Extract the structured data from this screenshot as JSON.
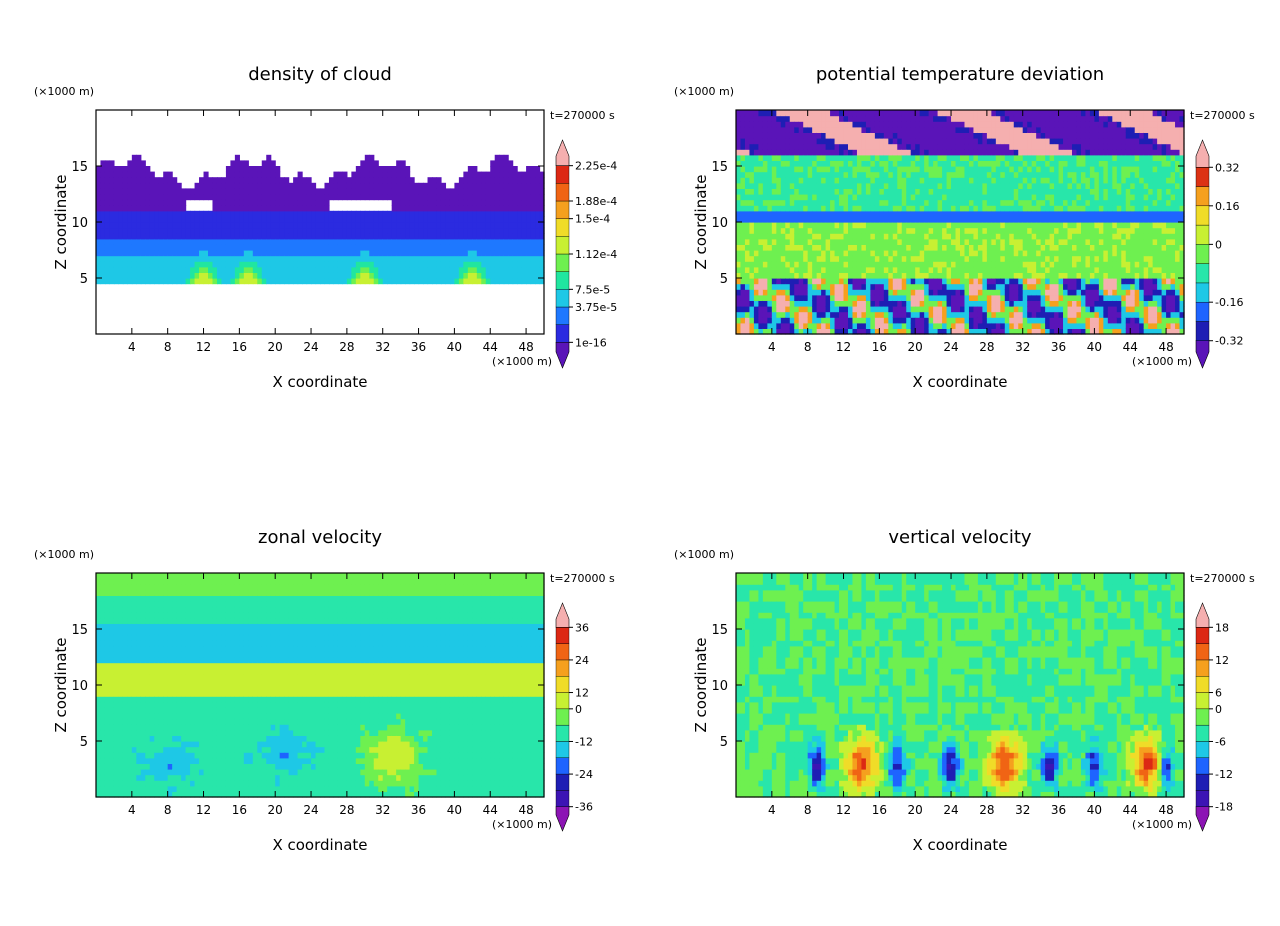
{
  "chart_data": [
    {
      "type": "heatmap",
      "title": "density of cloud",
      "xlabel": "X coordinate",
      "ylabel": "Z coordinate",
      "x_unit": "(×1000 m)",
      "y_unit": "(×1000 m)",
      "time_label": "t=270000 s",
      "xlim": [
        0,
        50
      ],
      "ylim": [
        0,
        20
      ],
      "xticks": [
        "4",
        "8",
        "12",
        "16",
        "20",
        "24",
        "28",
        "32",
        "36",
        "40",
        "44",
        "48"
      ],
      "yticks": [
        "5",
        "10",
        "15"
      ],
      "colorbar": {
        "labels": [
          "1e-16",
          "3.75e-5",
          "7.5e-5",
          "1.12e-4",
          "1.5e-4",
          "1.88e-4",
          "2.25e-4"
        ],
        "colors": [
          "#5a14b8",
          "#2b2be0",
          "#1e78ff",
          "#1ec8e6",
          "#20e6a0",
          "#6ef050",
          "#c8f032",
          "#f0dc28",
          "#f5a01e",
          "#f06414",
          "#dc2814",
          "#f5afaf"
        ]
      }
    },
    {
      "type": "heatmap",
      "title": "potential temperature deviation",
      "xlabel": "X coordinate",
      "ylabel": "Z coordinate",
      "x_unit": "(×1000 m)",
      "y_unit": "(×1000 m)",
      "time_label": "t=270000 s",
      "xlim": [
        0,
        50
      ],
      "ylim": [
        0,
        20
      ],
      "xticks": [
        "4",
        "8",
        "12",
        "16",
        "20",
        "24",
        "28",
        "32",
        "36",
        "40",
        "44",
        "48"
      ],
      "yticks": [
        "5",
        "10",
        "15"
      ],
      "colorbar": {
        "labels": [
          "-0.32",
          "-0.16",
          "0",
          "0.16",
          "0.32"
        ],
        "colors": [
          "#5a14b8",
          "#1e1eb4",
          "#1e64ff",
          "#1ec8e6",
          "#28e6aa",
          "#6ef050",
          "#c8f032",
          "#f0dc28",
          "#f5a01e",
          "#dc3214",
          "#f5afaf"
        ]
      }
    },
    {
      "type": "heatmap",
      "title": "zonal velocity",
      "xlabel": "X coordinate",
      "ylabel": "Z coordinate",
      "x_unit": "(×1000 m)",
      "y_unit": "(×1000 m)",
      "time_label": "t=270000 s",
      "xlim": [
        0,
        50
      ],
      "ylim": [
        0,
        20
      ],
      "xticks": [
        "4",
        "8",
        "12",
        "16",
        "20",
        "24",
        "28",
        "32",
        "36",
        "40",
        "44",
        "48"
      ],
      "yticks": [
        "5",
        "10",
        "15"
      ],
      "colorbar": {
        "labels": [
          "-36",
          "-24",
          "-12",
          "0",
          "12",
          "24",
          "36"
        ],
        "colors": [
          "#8c14b4",
          "#3c14b4",
          "#1e1eb4",
          "#1e64ff",
          "#1ec8e6",
          "#28e6aa",
          "#6ef050",
          "#c8f032",
          "#f0dc28",
          "#f5a01e",
          "#f06414",
          "#dc2814",
          "#f5afaf"
        ]
      }
    },
    {
      "type": "heatmap",
      "title": "vertical velocity",
      "xlabel": "X coordinate",
      "ylabel": "Z coordinate",
      "x_unit": "(×1000 m)",
      "y_unit": "(×1000 m)",
      "time_label": "t=270000 s",
      "xlim": [
        0,
        50
      ],
      "ylim": [
        0,
        20
      ],
      "xticks": [
        "4",
        "8",
        "12",
        "16",
        "20",
        "24",
        "28",
        "32",
        "36",
        "40",
        "44",
        "48"
      ],
      "yticks": [
        "5",
        "10",
        "15"
      ],
      "colorbar": {
        "labels": [
          "-18",
          "-12",
          "-6",
          "0",
          "6",
          "12",
          "18"
        ],
        "colors": [
          "#8c14b4",
          "#3c14b4",
          "#1e1eb4",
          "#1e64ff",
          "#1ec8e6",
          "#28e6aa",
          "#6ef050",
          "#c8f032",
          "#f0dc28",
          "#f5a01e",
          "#f06414",
          "#dc2814",
          "#f5afaf"
        ]
      }
    }
  ]
}
